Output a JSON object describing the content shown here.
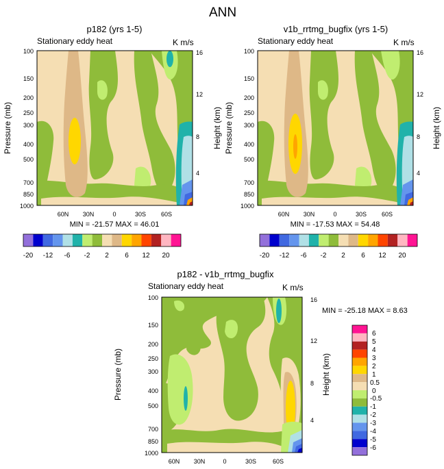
{
  "page_title": "ANN",
  "palette": {
    "c0": "#9370db",
    "c1": "#0000cd",
    "c2": "#4169e1",
    "c3": "#6495ed",
    "c4": "#b0e0e6",
    "c5": "#20b2aa",
    "c6": "#c0ed70",
    "c7": "#8fbc3a",
    "c8": "#f5deb3",
    "c9": "#deb887",
    "c10": "#ffd700",
    "c11": "#ffa500",
    "c12": "#ff4500",
    "c13": "#b22222",
    "c14": "#ffb6c1",
    "c15": "#ff1493"
  },
  "chart_data": [
    {
      "type": "contour",
      "title": "p182 (yrs 1-5)",
      "left_label": "Stationary eddy heat",
      "units_label": "K m/s",
      "ylabel": "Pressure (mb)",
      "y2label": "Height (km)",
      "y_ticks": [
        "100",
        "150",
        "200",
        "250",
        "300",
        "400",
        "500",
        "700",
        "850",
        "1000"
      ],
      "y2_ticks": [
        "16",
        "12",
        "8",
        "4"
      ],
      "x_ticks": [
        "60N",
        "30N",
        "0",
        "30S",
        "60S"
      ],
      "stats": "MIN = -21.57  MAX =  46.01",
      "colorbar_labels": [
        "-20",
        "-12",
        "-6",
        "-2",
        "2",
        "6",
        "12",
        "20"
      ],
      "y_range_mb": [
        1000,
        100
      ],
      "x_range_lat": [
        90,
        -90
      ]
    },
    {
      "type": "contour",
      "title": "v1b_rrtmg_bugfix (yrs 1-5)",
      "left_label": "Stationary eddy heat",
      "units_label": "K m/s",
      "ylabel": "Pressure (mb)",
      "y2label": "Height (km)",
      "y_ticks": [
        "100",
        "150",
        "200",
        "250",
        "300",
        "400",
        "500",
        "700",
        "850",
        "1000"
      ],
      "y2_ticks": [
        "16",
        "12",
        "8",
        "4"
      ],
      "x_ticks": [
        "60N",
        "30N",
        "0",
        "30S",
        "60S"
      ],
      "stats": "MIN = -17.53  MAX =  54.48",
      "colorbar_labels": [
        "-20",
        "-12",
        "-6",
        "-2",
        "2",
        "6",
        "12",
        "20"
      ],
      "y_range_mb": [
        1000,
        100
      ],
      "x_range_lat": [
        90,
        -90
      ]
    },
    {
      "type": "contour",
      "title": "p182 - v1b_rrtmg_bugfix",
      "left_label": "Stationary eddy heat",
      "units_label": "K m/s",
      "ylabel": "Pressure (mb)",
      "y2label": "Height (km)",
      "y_ticks": [
        "100",
        "150",
        "200",
        "250",
        "300",
        "400",
        "500",
        "700",
        "850",
        "1000"
      ],
      "y2_ticks": [
        "16",
        "12",
        "8",
        "4"
      ],
      "x_ticks": [
        "60N",
        "30N",
        "0",
        "30S",
        "60S"
      ],
      "stats": "MIN = -25.18  MAX =   8.63",
      "colorbar_labels": [
        "6",
        "5",
        "4",
        "3",
        "2",
        "1",
        "0.5",
        "0",
        "-0.5",
        "-1",
        "-2",
        "-3",
        "-4",
        "-5",
        "-6"
      ],
      "y_range_mb": [
        1000,
        100
      ],
      "x_range_lat": [
        90,
        -90
      ]
    }
  ]
}
